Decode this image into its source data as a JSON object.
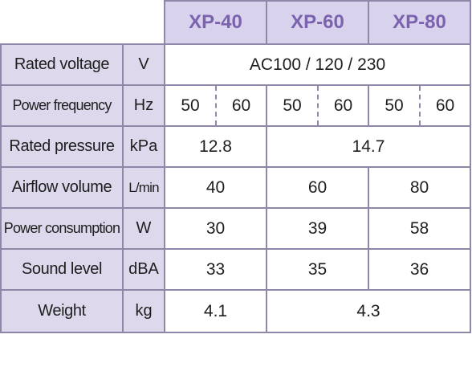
{
  "models": [
    "XP-40",
    "XP-60",
    "XP-80"
  ],
  "rows": {
    "rated_voltage": {
      "label": "Rated voltage",
      "unit": "V",
      "value": "AC100 / 120 / 230"
    },
    "power_frequency": {
      "label": "Power frequency",
      "unit": "Hz",
      "values": [
        "50",
        "60",
        "50",
        "60",
        "50",
        "60"
      ]
    },
    "rated_pressure": {
      "label": "Rated pressure",
      "unit": "kPa",
      "values": [
        "12.8",
        "14.7"
      ]
    },
    "airflow_volume": {
      "label": "Airflow volume",
      "unit": "L/min",
      "values": [
        "40",
        "60",
        "80"
      ]
    },
    "power_consumption": {
      "label": "Power consumption",
      "unit": "W",
      "values": [
        "30",
        "39",
        "58"
      ]
    },
    "sound_level": {
      "label": "Sound level",
      "unit": "dBA",
      "values": [
        "33",
        "35",
        "36"
      ]
    },
    "weight": {
      "label": "Weight",
      "unit": "kg",
      "values": [
        "4.1",
        "4.3"
      ]
    }
  },
  "colors": {
    "header_fill": "#d9d2ec",
    "header_text": "#7a62ae",
    "label_fill": "#ddd8ec",
    "border": "#8f86a8"
  }
}
